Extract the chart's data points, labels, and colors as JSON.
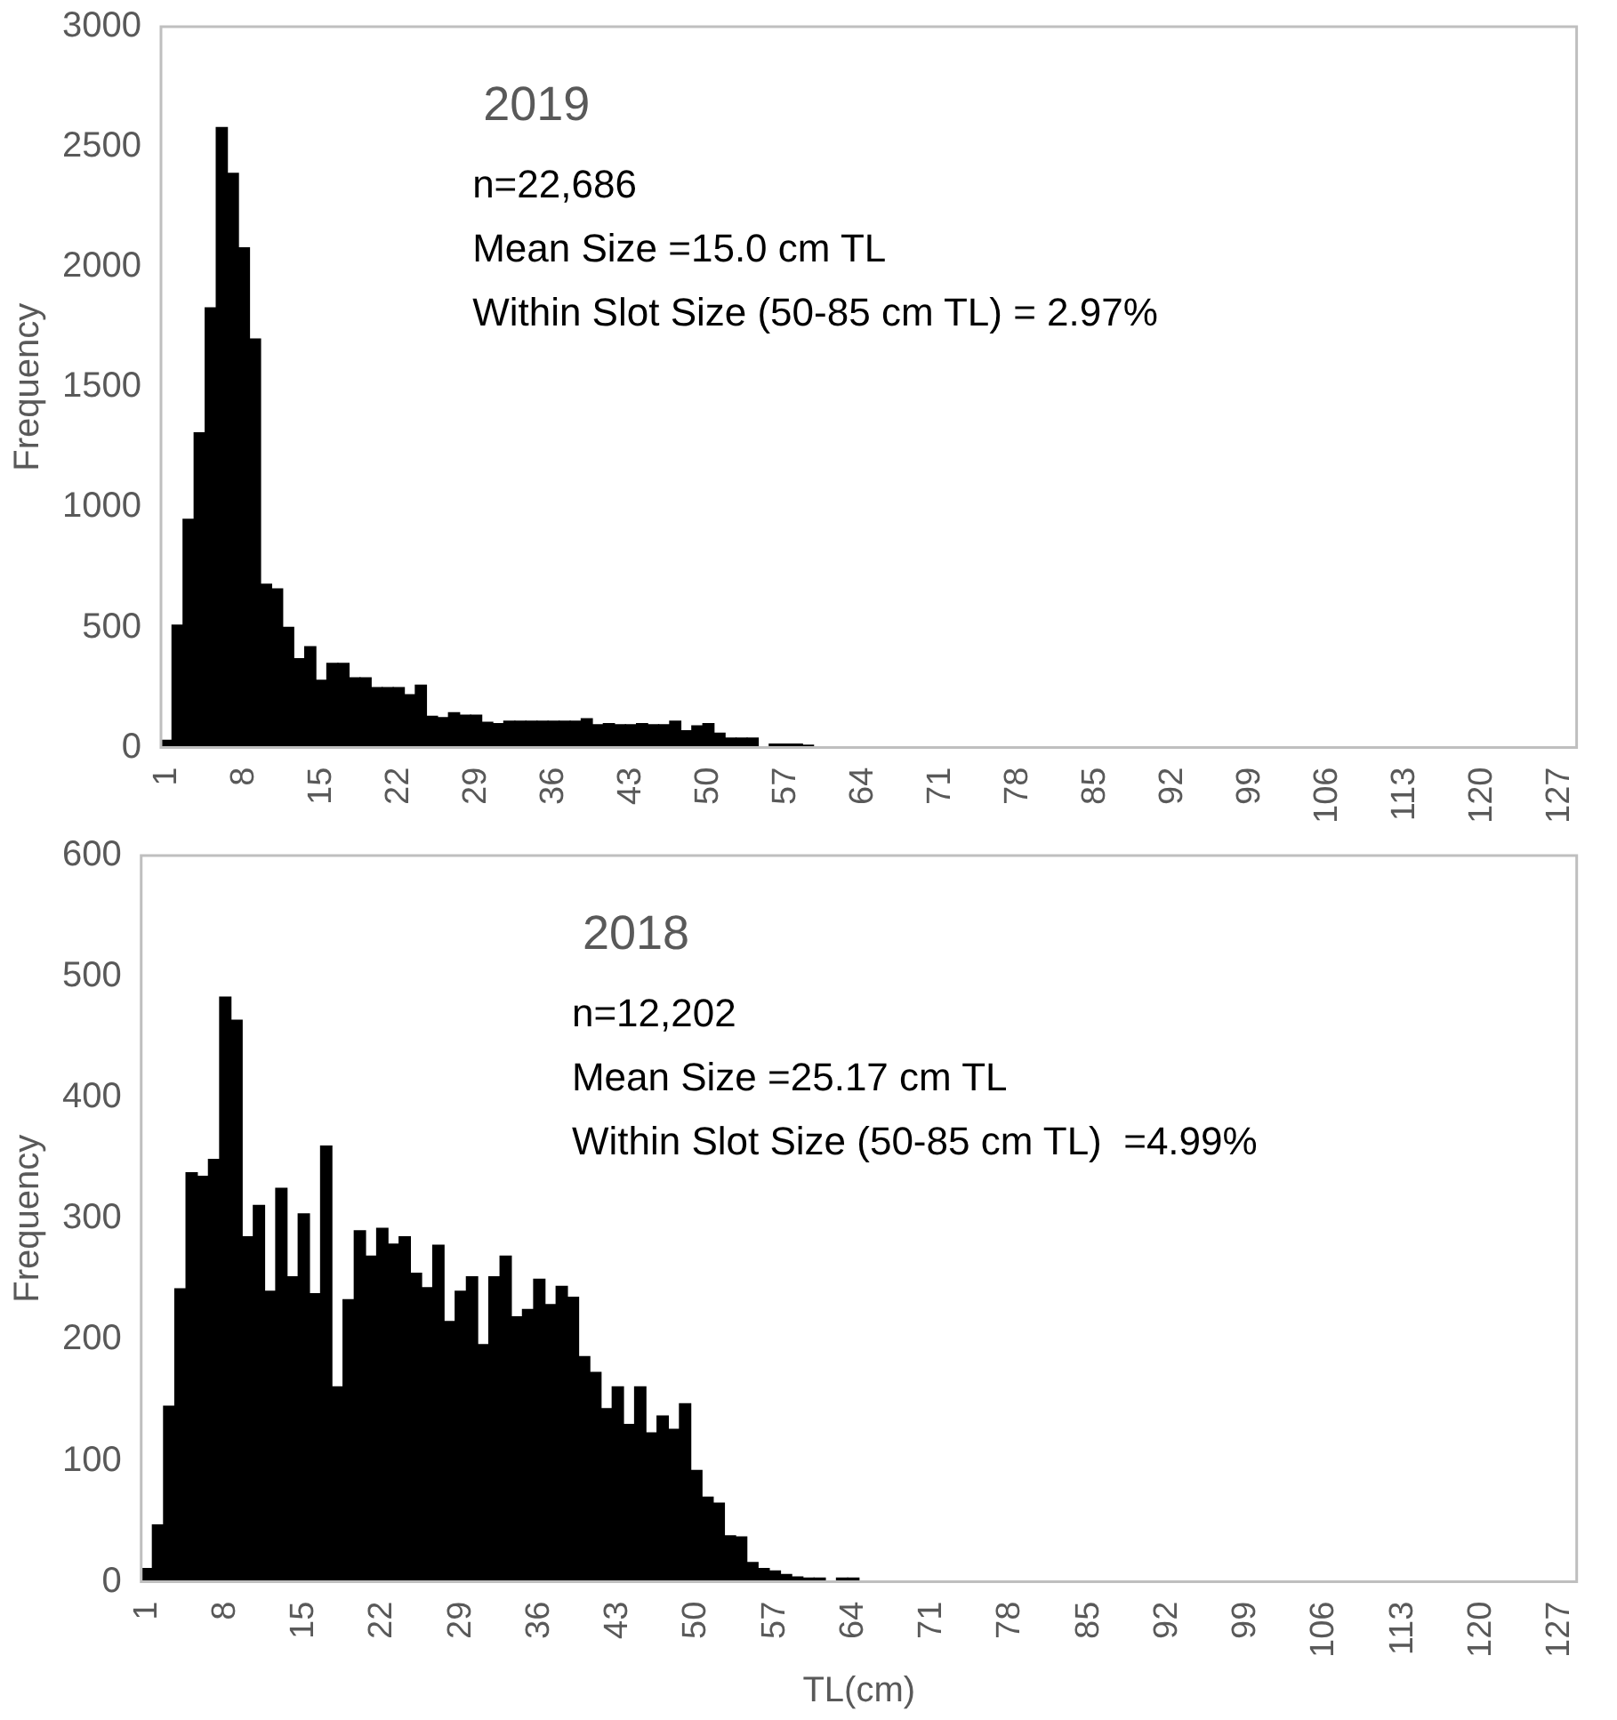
{
  "chart_data": [
    {
      "type": "bar",
      "title": "2019",
      "ylabel": "Frequency",
      "annotations": [
        "n=22,686",
        "Mean Size =15.0 cm TL",
        "Within Slot Size (50-85 cm TL) = 2.97%"
      ],
      "categories": [
        "1",
        null,
        null,
        null,
        null,
        null,
        null,
        "8",
        null,
        null,
        null,
        null,
        null,
        null,
        "15",
        null,
        null,
        null,
        null,
        null,
        null,
        "22",
        null,
        null,
        null,
        null,
        null,
        null,
        "29",
        null,
        null,
        null,
        null,
        null,
        null,
        "36",
        null,
        null,
        null,
        null,
        null,
        null,
        "43",
        null,
        null,
        null,
        null,
        null,
        null,
        "50",
        null,
        null,
        null,
        null,
        null,
        null,
        "57",
        null,
        null,
        null,
        null,
        null,
        null,
        "64",
        null,
        null,
        null,
        null,
        null,
        null,
        "71",
        null,
        null,
        null,
        null,
        null,
        null,
        "78",
        null,
        null,
        null,
        null,
        null,
        null,
        "85",
        null,
        null,
        null,
        null,
        null,
        null,
        "92",
        null,
        null,
        null,
        null,
        null,
        null,
        "99",
        null,
        null,
        null,
        null,
        null,
        null,
        "106",
        null,
        null,
        null,
        null,
        null,
        null,
        "113",
        null,
        null,
        null,
        null,
        null,
        null,
        "120",
        null,
        null,
        null,
        null,
        null,
        null,
        "127",
        null
      ],
      "values": [
        30,
        510,
        950,
        1310,
        1830,
        2580,
        2390,
        2080,
        1700,
        680,
        660,
        500,
        370,
        420,
        280,
        350,
        350,
        290,
        290,
        250,
        250,
        250,
        220,
        260,
        130,
        125,
        145,
        135,
        135,
        105,
        100,
        110,
        110,
        110,
        110,
        110,
        110,
        110,
        120,
        95,
        100,
        95,
        95,
        100,
        95,
        95,
        110,
        70,
        90,
        100,
        60,
        40,
        40,
        40,
        null,
        15,
        15,
        15,
        10,
        0,
        0,
        0,
        0,
        0,
        0,
        0,
        0,
        0,
        0,
        0,
        0,
        0,
        0,
        0,
        0,
        0,
        0,
        0,
        0,
        0,
        0,
        0,
        0,
        0,
        0,
        0,
        0,
        0,
        0,
        0,
        0,
        0,
        0,
        0,
        0,
        0,
        0,
        0,
        0,
        0,
        0,
        0,
        0,
        0,
        0,
        0,
        0,
        0,
        0,
        0,
        0,
        0,
        0,
        0,
        0,
        0,
        0,
        0,
        0,
        0,
        0,
        0,
        0,
        0,
        0,
        0,
        0,
        0
      ],
      "color": "#000000",
      "ylim": [
        0,
        3000
      ],
      "yticks": [
        0,
        500,
        1000,
        1500,
        2000,
        2500,
        3000
      ],
      "grid": false,
      "legend": false
    },
    {
      "type": "bar",
      "title": "2018",
      "ylabel": "Frequency",
      "xlabel": "TL(cm)",
      "annotations": [
        "n=12,202",
        "Mean Size =25.17 cm TL",
        "Within Slot Size (50-85 cm TL)  =4.99%"
      ],
      "categories": [
        "1",
        null,
        null,
        null,
        null,
        null,
        null,
        "8",
        null,
        null,
        null,
        null,
        null,
        null,
        "15",
        null,
        null,
        null,
        null,
        null,
        null,
        "22",
        null,
        null,
        null,
        null,
        null,
        null,
        "29",
        null,
        null,
        null,
        null,
        null,
        null,
        "36",
        null,
        null,
        null,
        null,
        null,
        null,
        "43",
        null,
        null,
        null,
        null,
        null,
        null,
        "50",
        null,
        null,
        null,
        null,
        null,
        null,
        "57",
        null,
        null,
        null,
        null,
        null,
        null,
        "64",
        null,
        null,
        null,
        null,
        null,
        null,
        "71",
        null,
        null,
        null,
        null,
        null,
        null,
        "78",
        null,
        null,
        null,
        null,
        null,
        null,
        "85",
        null,
        null,
        null,
        null,
        null,
        null,
        "92",
        null,
        null,
        null,
        null,
        null,
        null,
        "99",
        null,
        null,
        null,
        null,
        null,
        null,
        "106",
        null,
        null,
        null,
        null,
        null,
        null,
        "113",
        null,
        null,
        null,
        null,
        null,
        null,
        "120",
        null,
        null,
        null,
        null,
        null,
        null,
        "127",
        null
      ],
      "values": [
        11,
        47,
        145,
        242,
        338,
        335,
        349,
        483,
        464,
        285,
        311,
        240,
        325,
        252,
        304,
        238,
        360,
        161,
        233,
        290,
        269,
        292,
        279,
        285,
        255,
        243,
        278,
        215,
        240,
        252,
        196,
        252,
        269,
        219,
        225,
        250,
        229,
        244,
        235,
        186,
        173,
        143,
        161,
        130,
        161,
        123,
        137,
        126,
        147,
        92,
        70,
        65,
        38,
        37,
        16,
        11,
        9,
        6,
        4,
        3,
        3,
        0,
        3,
        3,
        0,
        0,
        0,
        0,
        0,
        0,
        0,
        0,
        0,
        0,
        0,
        0,
        0,
        0,
        0,
        0,
        0,
        0,
        0,
        0,
        0,
        0,
        0,
        0,
        0,
        0,
        0,
        0,
        0,
        0,
        0,
        0,
        0,
        0,
        0,
        0,
        0,
        0,
        0,
        0,
        0,
        0,
        0,
        0,
        0,
        0,
        0,
        0,
        0,
        0,
        0,
        0,
        0,
        0,
        0,
        0,
        0,
        0,
        0,
        0,
        0,
        0,
        0,
        0
      ],
      "color": "#000000",
      "ylim": [
        0,
        600
      ],
      "yticks": [
        0,
        100,
        200,
        300,
        400,
        500,
        600
      ],
      "grid": false,
      "legend": false
    }
  ]
}
